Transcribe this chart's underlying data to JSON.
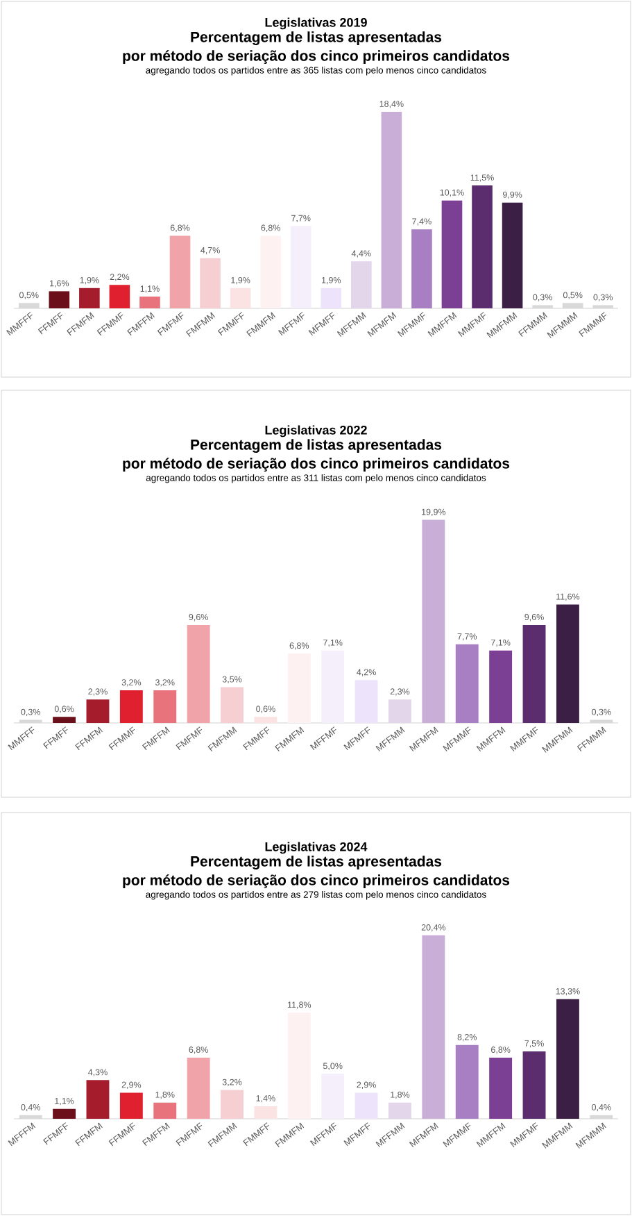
{
  "chart_data": [
    {
      "type": "bar",
      "title": "Legislativas 2019",
      "subtitle": "Percentagem de listas apresentadas por método de seriação dos cinco primeiros candidatos",
      "annotations": [
        "agregando todos os partidos entre as 365 listas com pelo menos cinco candidatos"
      ],
      "categories": [
        "MMFFF",
        "FFMFF",
        "FFMFM",
        "FFMMF",
        "FMFFM",
        "FMFMF",
        "FMFMM",
        "FMMFF",
        "FMMFM",
        "MFFMF",
        "MFMFF",
        "MFFMM",
        "MFMFM",
        "MFMMF",
        "MMFFM",
        "MMFMF",
        "MMFMM",
        "FFMMM",
        "MFMMM",
        "FMMMF"
      ],
      "values": [
        0.5,
        1.6,
        1.9,
        2.2,
        1.1,
        6.8,
        4.7,
        1.9,
        6.8,
        7.7,
        1.9,
        4.4,
        18.4,
        7.4,
        10.1,
        11.5,
        9.9,
        0.3,
        0.5,
        0.3
      ],
      "value_labels": [
        "0,5%",
        "1,6%",
        "1,9%",
        "2,2%",
        "1,1%",
        "6,8%",
        "4,7%",
        "1,9%",
        "6,8%",
        "7,7%",
        "1,9%",
        "4,4%",
        "18,4%",
        "7,4%",
        "10,1%",
        "11,5%",
        "9,9%",
        "0,3%",
        "0,5%",
        "0,3%"
      ],
      "colors": [
        "#d9d9d9",
        "#6b0f1a",
        "#a51c2d",
        "#e0202f",
        "#e8737d",
        "#f0a3a9",
        "#f6cfd3",
        "#fbe3e4",
        "#fdf2f1",
        "#f5eefb",
        "#ede3fb",
        "#e3d6ea",
        "#c9aed8",
        "#a97fc4",
        "#7b3f93",
        "#5b2d6e",
        "#3b1f45",
        "#d9d9d9",
        "#d9d9d9",
        "#d9d9d9"
      ],
      "tick_labels": "x"
    },
    {
      "type": "bar",
      "title": "Legislativas 2022",
      "subtitle": "Percentagem de listas apresentadas por método de seriação dos cinco primeiros candidatos",
      "annotations": [
        "agregando todos os partidos entre as 311 listas com pelo menos cinco candidatos"
      ],
      "categories": [
        "MMFFF",
        "FFMFF",
        "FFMFM",
        "FFMMF",
        "FMFFM",
        "FMFMF",
        "FMFMM",
        "FMMFF",
        "FMMFM",
        "MFFMF",
        "MFMFF",
        "MFFMM",
        "MFMFM",
        "MFMMF",
        "MMFFM",
        "MMFMF",
        "MMFMM",
        "FFMMM"
      ],
      "values": [
        0.3,
        0.6,
        2.3,
        3.2,
        3.2,
        9.6,
        3.5,
        0.6,
        6.8,
        7.1,
        4.2,
        2.3,
        19.9,
        7.7,
        7.1,
        9.6,
        11.6,
        0.3
      ],
      "value_labels": [
        "0,3%",
        "0,6%",
        "2,3%",
        "3,2%",
        "3,2%",
        "9,6%",
        "3,5%",
        "0,6%",
        "6,8%",
        "7,1%",
        "4,2%",
        "2,3%",
        "19,9%",
        "7,7%",
        "7,1%",
        "9,6%",
        "11,6%",
        "0,3%"
      ],
      "colors": [
        "#d9d9d9",
        "#6b0f1a",
        "#a51c2d",
        "#e0202f",
        "#e8737d",
        "#f0a3a9",
        "#f6cfd3",
        "#fbe3e4",
        "#fdf2f1",
        "#f5eefb",
        "#ede3fb",
        "#e3d6ea",
        "#c9aed8",
        "#a97fc4",
        "#7b3f93",
        "#5b2d6e",
        "#3b1f45",
        "#d9d9d9"
      ],
      "tick_labels": "x"
    },
    {
      "type": "bar",
      "title": "Legislativas 2024",
      "subtitle": "Percentagem de listas apresentadas por método de seriação dos cinco primeiros candidatos",
      "annotations": [
        "agregando todos os partidos entre as 279 listas com pelo menos cinco candidatos"
      ],
      "categories": [
        "MFFFM",
        "FFMFF",
        "FFMFM",
        "FFMMF",
        "FMFFM",
        "FMFMF",
        "FMFMM",
        "FMMFF",
        "FMMFM",
        "MFFMF",
        "MFMFF",
        "MFFMM",
        "MFMFM",
        "MFMMF",
        "MMFFM",
        "MMFMF",
        "MMFMM",
        "MFMMM"
      ],
      "values": [
        0.4,
        1.1,
        4.3,
        2.9,
        1.8,
        6.8,
        3.2,
        1.4,
        11.8,
        5.0,
        2.9,
        1.8,
        20.4,
        8.2,
        6.8,
        7.5,
        13.3,
        0.4
      ],
      "value_labels": [
        "0,4%",
        "1,1%",
        "4,3%",
        "2,9%",
        "1,8%",
        "6,8%",
        "3,2%",
        "1,4%",
        "11,8%",
        "5,0%",
        "2,9%",
        "1,8%",
        "20,4%",
        "8,2%",
        "6,8%",
        "7,5%",
        "13,3%",
        "0,4%"
      ],
      "colors": [
        "#d9d9d9",
        "#6b0f1a",
        "#a51c2d",
        "#e0202f",
        "#e8737d",
        "#f0a3a9",
        "#f6cfd3",
        "#fbe3e4",
        "#fdf2f1",
        "#f5eefb",
        "#ede3fb",
        "#e3d6ea",
        "#c9aed8",
        "#a97fc4",
        "#7b3f93",
        "#5b2d6e",
        "#3b1f45",
        "#d9d9d9"
      ],
      "tick_labels": "x"
    }
  ]
}
